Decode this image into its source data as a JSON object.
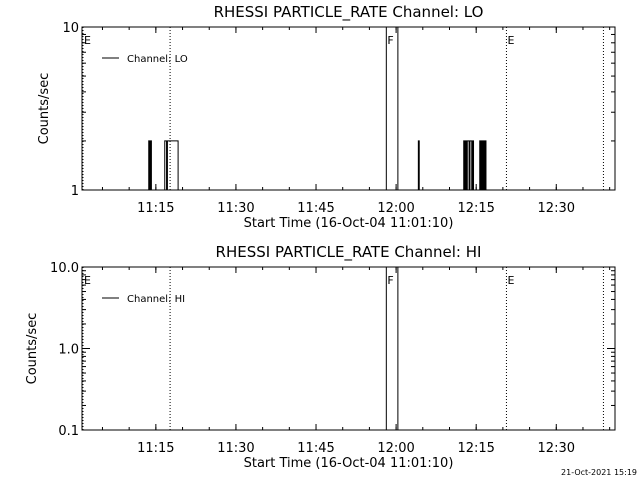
{
  "chart_data": [
    {
      "type": "line",
      "title": "RHESSI PARTICLE_RATE Channel: LO",
      "xlabel": "Start Time (16-Oct-04 11:01:10)",
      "ylabel": "Counts/sec",
      "y_scale": "log",
      "ylim": [
        1,
        10
      ],
      "y_ticks": [
        {
          "value": 1,
          "label": "1"
        },
        {
          "value": 10,
          "label": "10"
        }
      ],
      "xlim": [
        "11:01:10",
        "12:41:00"
      ],
      "x_ticks": [
        "11:15",
        "11:30",
        "11:45",
        "12:00",
        "12:15",
        "12:30"
      ],
      "grid": false,
      "legend": {
        "position": "top-left",
        "entries": [
          "Channel: LO"
        ]
      },
      "series": [
        {
          "name": "Channel: LO",
          "x": [
            "11:01:10",
            "11:13:30",
            "11:13:40",
            "11:13:50",
            "11:14:00",
            "11:14:10",
            "11:14:20",
            "11:16:30",
            "11:16:40",
            "11:16:50",
            "11:17:00",
            "11:17:10",
            "11:17:20",
            "11:17:30",
            "11:19:00",
            "11:19:10",
            "11:19:20",
            "12:04:00",
            "12:04:10",
            "12:04:20",
            "12:04:40",
            "12:12:30",
            "12:12:40",
            "12:12:50",
            "12:13:00",
            "12:13:10",
            "12:13:20",
            "12:13:30",
            "12:13:40",
            "12:13:50",
            "12:14:00",
            "12:14:10",
            "12:14:20",
            "12:14:30",
            "12:14:40",
            "12:15:30",
            "12:15:40",
            "12:15:50",
            "12:16:00",
            "12:16:10",
            "12:16:20",
            "12:16:30",
            "12:16:40",
            "12:16:50",
            "12:41:00"
          ],
          "values": [
            1,
            1,
            2,
            1,
            2,
            1,
            1,
            1,
            2,
            2,
            1,
            2,
            2,
            2,
            2,
            1,
            1,
            1,
            2,
            1,
            1,
            1,
            2,
            1,
            2,
            1,
            2,
            2,
            1,
            2,
            2,
            1,
            2,
            1,
            1,
            1,
            2,
            1,
            2,
            1,
            2,
            1,
            2,
            1,
            1
          ]
        }
      ],
      "markers": [
        {
          "time": "11:01:10",
          "flag": "E",
          "style": "dotted"
        },
        {
          "time": "11:17:40",
          "flag": "",
          "style": "dotted"
        },
        {
          "time": "11:58:10",
          "flag": "F",
          "style": "solid"
        },
        {
          "time": "12:00:20",
          "flag": "",
          "style": "solid"
        },
        {
          "time": "12:20:40",
          "flag": "E",
          "style": "dotted"
        },
        {
          "time": "12:38:50",
          "flag": "",
          "style": "dotted"
        }
      ]
    },
    {
      "type": "line",
      "title": "RHESSI PARTICLE_RATE Channel: HI",
      "xlabel": "Start Time (16-Oct-04 11:01:10)",
      "ylabel": "Counts/sec",
      "y_scale": "log",
      "ylim": [
        0.1,
        10
      ],
      "y_ticks": [
        {
          "value": 0.1,
          "label": "0.1"
        },
        {
          "value": 1,
          "label": "1.0"
        },
        {
          "value": 10,
          "label": "10.0"
        }
      ],
      "xlim": [
        "11:01:10",
        "12:41:00"
      ],
      "x_ticks": [
        "11:15",
        "11:30",
        "11:45",
        "12:00",
        "12:15",
        "12:30"
      ],
      "grid": false,
      "legend": {
        "position": "top-left",
        "entries": [
          "Channel: HI"
        ]
      },
      "series": [
        {
          "name": "Channel: HI",
          "x": [],
          "values": []
        }
      ],
      "markers": [
        {
          "time": "11:01:10",
          "flag": "E",
          "style": "dotted"
        },
        {
          "time": "11:17:40",
          "flag": "",
          "style": "dotted"
        },
        {
          "time": "11:58:10",
          "flag": "F",
          "style": "solid"
        },
        {
          "time": "12:00:20",
          "flag": "",
          "style": "solid"
        },
        {
          "time": "12:20:40",
          "flag": "E",
          "style": "dotted"
        },
        {
          "time": "12:38:50",
          "flag": "",
          "style": "dotted"
        }
      ]
    }
  ],
  "footer": {
    "timestamp": "21-Oct-2021 15:19"
  }
}
